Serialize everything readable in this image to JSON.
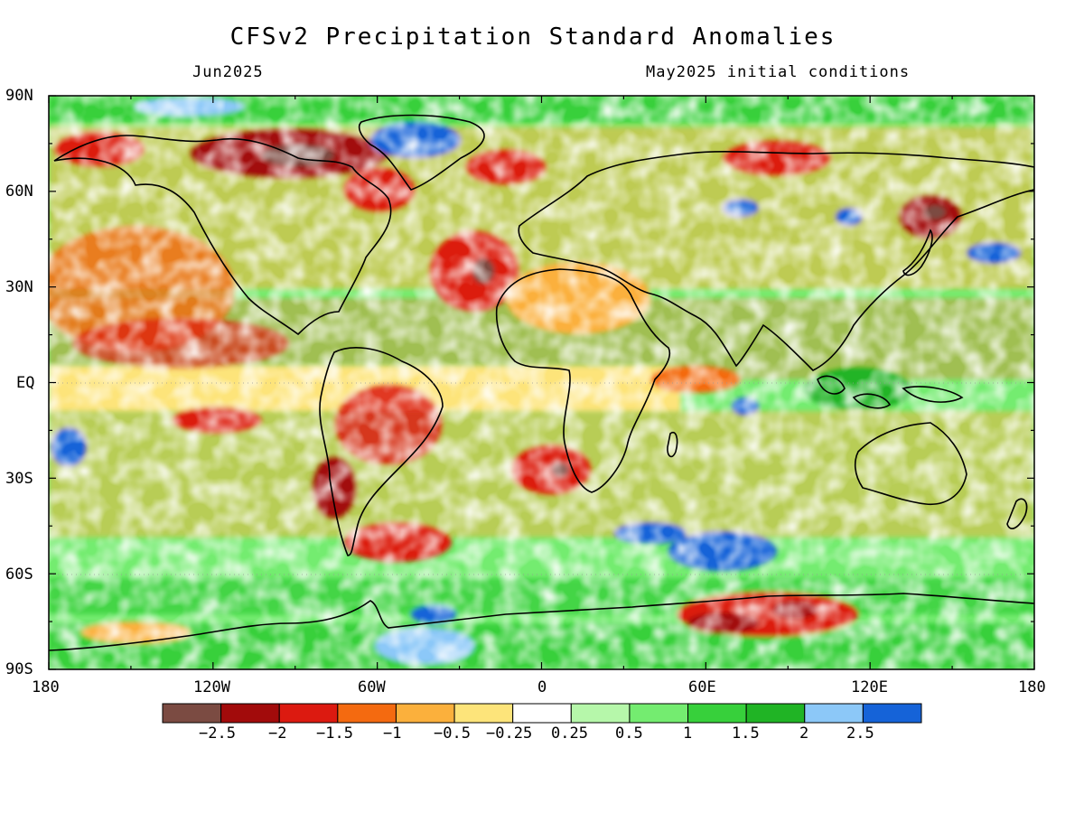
{
  "header": {
    "title": "CFSv2 Precipitation Standard Anomalies",
    "valid_month": "Jun2025",
    "initial_conditions": "May2025 initial conditions"
  },
  "axes": {
    "lat_labels": [
      "90N",
      "60N",
      "30N",
      "EQ",
      "30S",
      "60S",
      "90S"
    ],
    "lat_values": [
      90,
      60,
      30,
      0,
      -30,
      -60,
      -90
    ],
    "lon_labels": [
      "180",
      "120W",
      "60W",
      "0",
      "60E",
      "120E",
      "180"
    ],
    "lon_values": [
      -180,
      -120,
      -60,
      0,
      60,
      120,
      180
    ],
    "lon_range": [
      -180,
      180
    ],
    "lat_range": [
      -90,
      90
    ]
  },
  "colorbar": {
    "labels": [
      "-2.5",
      "-2",
      "-1.5",
      "-1",
      "-0.5",
      "-0.25",
      "0.25",
      "0.5",
      "1",
      "1.5",
      "2",
      "2.5"
    ],
    "colors": [
      "#7b4b42",
      "#a20b0b",
      "#dc1a10",
      "#f46a10",
      "#fbb03c",
      "#fde47a",
      "#ffffff",
      "#b6f7aa",
      "#74ec70",
      "#37d03b",
      "#20b425",
      "#8cc8f8",
      "#1563d8"
    ]
  },
  "map": {
    "land_outline_color": "#000000",
    "major_anomaly_regions": [
      {
        "area": "Canadian Arctic / Alaska",
        "sign": "dry"
      },
      {
        "area": "Eastern subtropical North Atlantic",
        "sign": "dry"
      },
      {
        "area": "Northeast Pacific",
        "sign": "dry"
      },
      {
        "area": "Southern Brazil / Patagonia",
        "sign": "dry"
      },
      {
        "area": "Southeast Atlantic off southern Africa",
        "sign": "dry"
      },
      {
        "area": "Antarctic coast south of Indian Ocean",
        "sign": "dry"
      },
      {
        "area": "Japan / Sea of Okhotsk",
        "sign": "dry"
      },
      {
        "area": "Greenland",
        "sign": "wet"
      },
      {
        "area": "Southern Indian Ocean",
        "sign": "wet"
      },
      {
        "area": "Maritime Continent",
        "sign": "wet"
      },
      {
        "area": "Weddell Sea",
        "sign": "wet"
      },
      {
        "area": "Equatorial Pacific",
        "sign": "near-normal"
      }
    ]
  }
}
